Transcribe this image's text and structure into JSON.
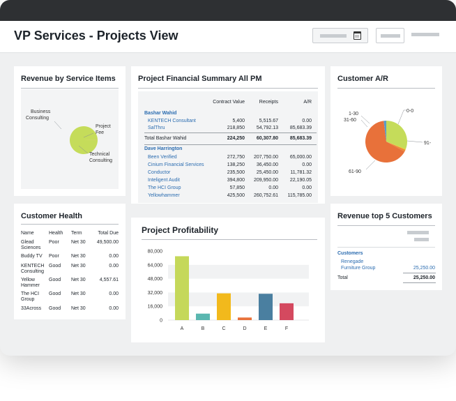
{
  "header": {
    "title": "VP Services - Projects View"
  },
  "revenue_by_service": {
    "title": "Revenue by  Service Items",
    "labels": [
      "Business Consulting",
      "Project Fee",
      "Technical Consulting"
    ],
    "chart_data": {
      "type": "pie",
      "categories": [
        "Business Consulting",
        "Project Fee",
        "Technical Consulting"
      ],
      "values": [
        99.7,
        0.1,
        0.2
      ],
      "colors": [
        "#c5dc5a",
        "#4a7fa0",
        "#ebc430"
      ]
    }
  },
  "financial_summary": {
    "title": "Project Financial Summary All PM",
    "columns": [
      "Contract Value",
      "Receipts",
      "A/R"
    ],
    "groups": [
      {
        "pm": "Bashar Wahid",
        "rows": [
          {
            "name": "KENTECH Consultant",
            "contract": "5,400",
            "receipts": "5,515.67",
            "ar": "0.00"
          },
          {
            "name": "SalThru",
            "contract": "218,850",
            "receipts": "54,792.13",
            "ar": "85,683.39"
          }
        ],
        "total": {
          "name": "Total Bashar Wahid",
          "contract": "224,250",
          "receipts": "60,307.80",
          "ar": "85,683.39"
        }
      },
      {
        "pm": "Dave Harrington",
        "rows": [
          {
            "name": "Been Verified",
            "contract": "272,750",
            "receipts": "207,750.00",
            "ar": "65,000.00"
          },
          {
            "name": "Cinium Financial Services",
            "contract": "138,250",
            "receipts": "36,450.00",
            "ar": "0.00"
          },
          {
            "name": "Conductor",
            "contract": "235,500",
            "receipts": "25,450.00",
            "ar": "11,781.32"
          },
          {
            "name": "Inteligent Audit",
            "contract": "394,800",
            "receipts": "209,950.00",
            "ar": "22,190.05"
          },
          {
            "name": "The HCI Group",
            "contract": "57,850",
            "receipts": "0.00",
            "ar": "0.00"
          },
          {
            "name": "Yellowhammer",
            "contract": "425,500",
            "receipts": "260,752.61",
            "ar": "115,785.00"
          }
        ]
      }
    ]
  },
  "customer_ar": {
    "title": "Customer A/R",
    "labels": [
      "0-0",
      "1-30",
      "31-60",
      "61-90",
      "91-"
    ],
    "chart_data": {
      "type": "pie",
      "categories": [
        "0-0",
        "1-30",
        "31-60",
        "61-90",
        "91-"
      ],
      "values": [
        31,
        0.5,
        1.5,
        65,
        2
      ],
      "colors": [
        "#c5dc5a",
        "#f0c419",
        "#ea8a3a",
        "#e8713a",
        "#5b9bc8"
      ]
    }
  },
  "customer_health": {
    "title": "Customer Health",
    "columns": [
      "Name",
      "Health",
      "Term",
      "Total Due"
    ],
    "rows": [
      {
        "name": [
          "Glead",
          "Sciences"
        ],
        "health": "Poor",
        "term": "Net 30",
        "due": "49,500.00"
      },
      {
        "name": [
          "Buddy TV"
        ],
        "health": "Poor",
        "term": "Net 30",
        "due": "0.00"
      },
      {
        "name": [
          "KENTECH",
          "Consulting"
        ],
        "health": "Good",
        "term": "Net 30",
        "due": "0.00"
      },
      {
        "name": [
          "Yellow",
          "Hammer"
        ],
        "health": "Good",
        "term": "Net 30",
        "due": "4,557.61"
      },
      {
        "name": [
          "The HCI",
          "Group"
        ],
        "health": "Good",
        "term": "Net 30",
        "due": "0.00"
      },
      {
        "name": [
          "33Across"
        ],
        "health": "Good",
        "term": "Net 30",
        "due": "0.00"
      }
    ]
  },
  "project_profitability": {
    "title": "Project Profitability",
    "chart_data": {
      "type": "bar",
      "categories": [
        "A",
        "B",
        "C",
        "D",
        "E",
        "F"
      ],
      "values": [
        74000,
        7500,
        31000,
        3000,
        30500,
        19500
      ],
      "colors": [
        "#c5d85a",
        "#5ab7b0",
        "#f2b91c",
        "#e8713a",
        "#4a7fa0",
        "#d4495f"
      ],
      "yticks": [
        "80,000",
        "64,000",
        "48,000",
        "32,000",
        "16,000",
        "0"
      ],
      "ylim": [
        0,
        80000
      ],
      "grid": true
    }
  },
  "revenue_top5": {
    "title": "Revenue top 5 Customers",
    "section": "Customers",
    "customer": [
      "Renegade",
      "Furniture Group"
    ],
    "customer_value": "25,250.00",
    "total_label": "Total",
    "total_value": "25,250.00"
  }
}
